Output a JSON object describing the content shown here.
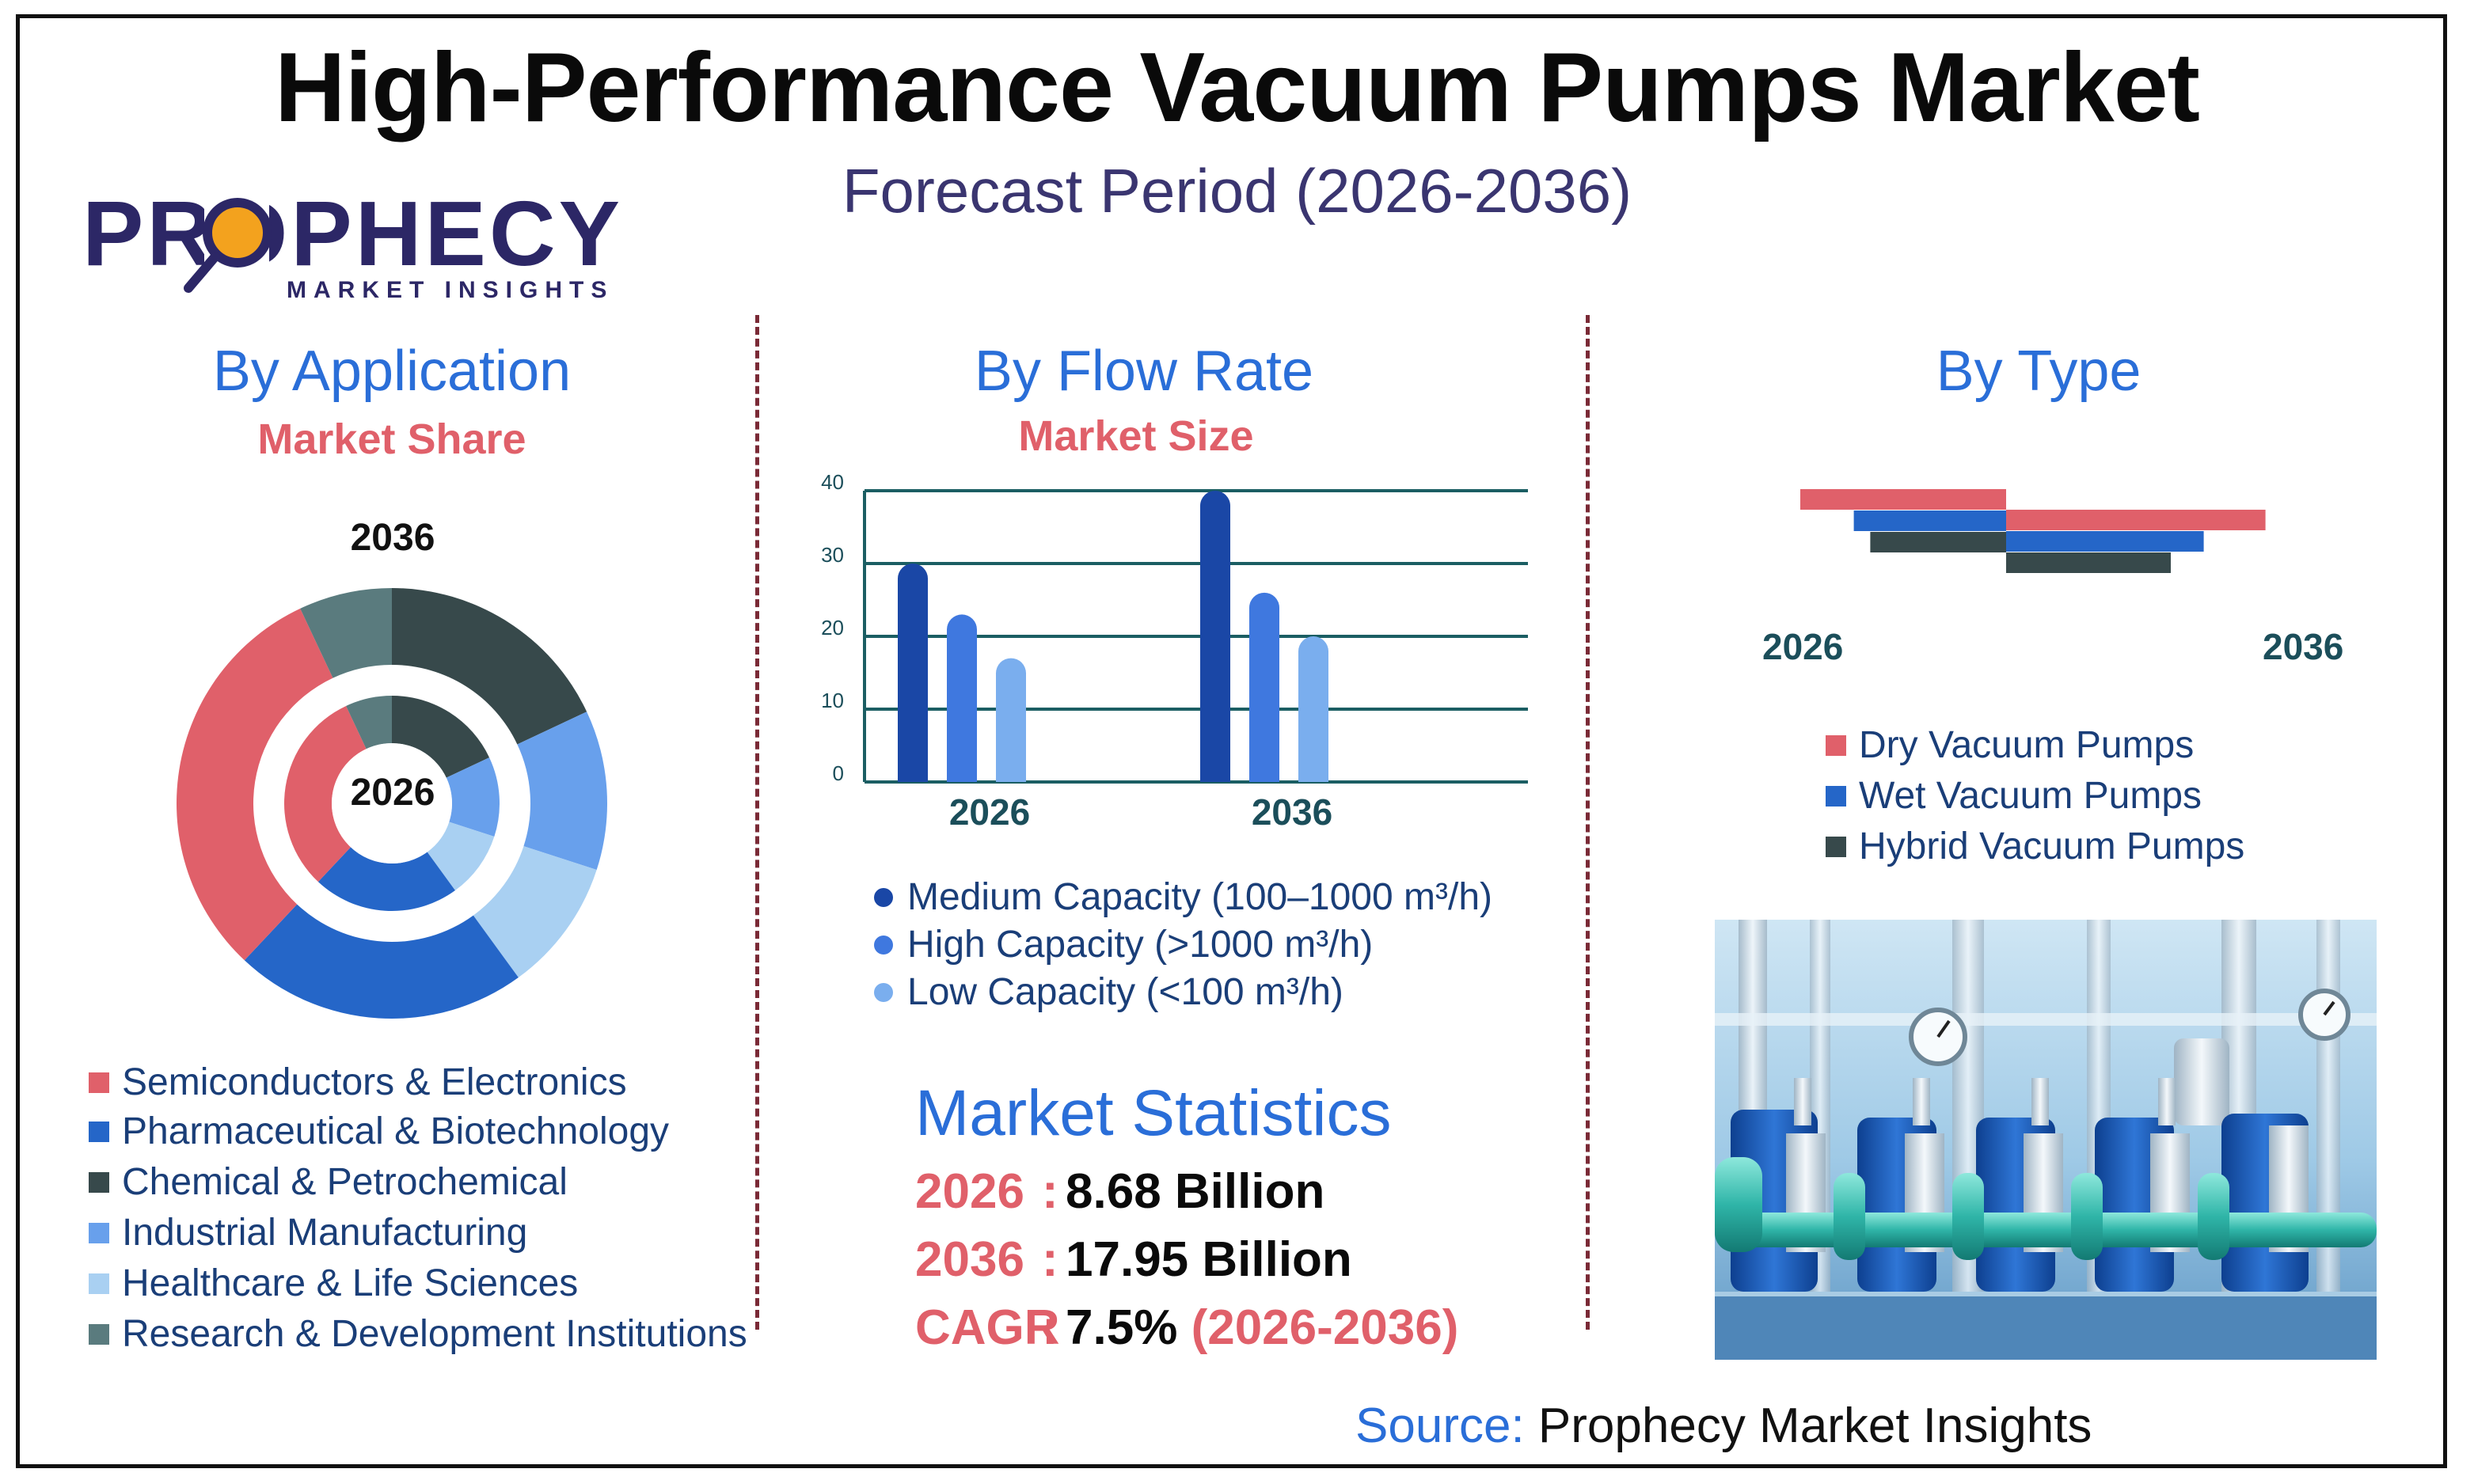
{
  "title": "High-Performance Vacuum Pumps Market",
  "subtitle": "Forecast Period (2026-2036)",
  "logo": {
    "word": "PROPHECY",
    "tagline": "MARKET INSIGHTS"
  },
  "source": {
    "label": "Source:",
    "value": "Prophecy Market Insights"
  },
  "colors": {
    "red": "#e0606a",
    "blue": "#2566c8",
    "dark": "#37494b",
    "mid_blue": "#68a0ec",
    "light_blue": "#a9d0f2",
    "slate": "#5a7b7e",
    "navy": "#1a47a6",
    "royal": "#3f78df",
    "sky": "#7aaeee"
  },
  "application": {
    "title": "By Application",
    "subtitle": "Market Share",
    "outer_label": "2036",
    "inner_label": "2026",
    "legend": [
      "Semiconductors & Electronics",
      "Pharmaceutical & Biotechnology",
      "Chemical & Petrochemical",
      "Industrial Manufacturing",
      "Healthcare & Life Sciences",
      "Research & Development Institutions"
    ]
  },
  "flow_rate": {
    "title": "By Flow Rate",
    "subtitle": "Market Size",
    "legend": [
      "Medium Capacity (100–1000 m³/h)",
      "High Capacity (>1000 m³/h)",
      "Low Capacity (<100 m³/h)"
    ]
  },
  "type_section": {
    "title": "By Type",
    "left_year": "2026",
    "right_year": "2036",
    "legend": [
      "Dry Vacuum Pumps",
      "Wet Vacuum Pumps",
      "Hybrid Vacuum Pumps"
    ]
  },
  "statistics": {
    "title": "Market Statistics",
    "rows": [
      {
        "key": "2026",
        "colon": ":",
        "value": "8.68 Billion",
        "extra": ""
      },
      {
        "key": "2036",
        "colon": ":",
        "value": "17.95 Billion",
        "extra": ""
      },
      {
        "key": "CAGR",
        "colon": ":",
        "value": "7.5%",
        "extra": "(2026-2036)"
      }
    ]
  },
  "chart_data": [
    {
      "type": "pie",
      "variant": "nested-donut",
      "series": [
        {
          "name": "2036",
          "values": [
            31,
            22,
            18,
            12,
            10,
            7
          ],
          "categories": [
            "Semiconductors & Electronics",
            "Pharmaceutical & Biotechnology",
            "Chemical & Petrochemical",
            "Industrial Manufacturing",
            "Healthcare & Life Sciences",
            "Research & Development Institutions"
          ]
        },
        {
          "name": "2026",
          "values": [
            31,
            22,
            18,
            12,
            10,
            7
          ],
          "categories": [
            "Semiconductors & Electronics",
            "Pharmaceutical & Biotechnology",
            "Chemical & Petrochemical",
            "Industrial Manufacturing",
            "Healthcare & Life Sciences",
            "Research & Development Institutions"
          ]
        }
      ]
    },
    {
      "type": "bar",
      "categories": [
        "2026",
        "2036"
      ],
      "series": [
        {
          "name": "Medium Capacity (100–1000 m³/h)",
          "values": [
            30,
            40
          ]
        },
        {
          "name": "High Capacity (>1000 m³/h)",
          "values": [
            23,
            26
          ]
        },
        {
          "name": "Low Capacity (<100 m³/h)",
          "values": [
            17,
            20
          ]
        }
      ],
      "yticks": [
        0,
        10,
        20,
        30,
        40
      ],
      "ylim": [
        0,
        40
      ],
      "grid": true
    },
    {
      "type": "bar",
      "orientation": "horizontal-butterfly",
      "categories": [
        "Dry Vacuum Pumps",
        "Wet Vacuum Pumps",
        "Hybrid Vacuum Pumps"
      ],
      "series": [
        {
          "name": "2026",
          "values": [
            5.0,
            3.7,
            3.3
          ]
        },
        {
          "name": "2036",
          "values": [
            6.3,
            4.8,
            4.0
          ]
        }
      ]
    }
  ]
}
